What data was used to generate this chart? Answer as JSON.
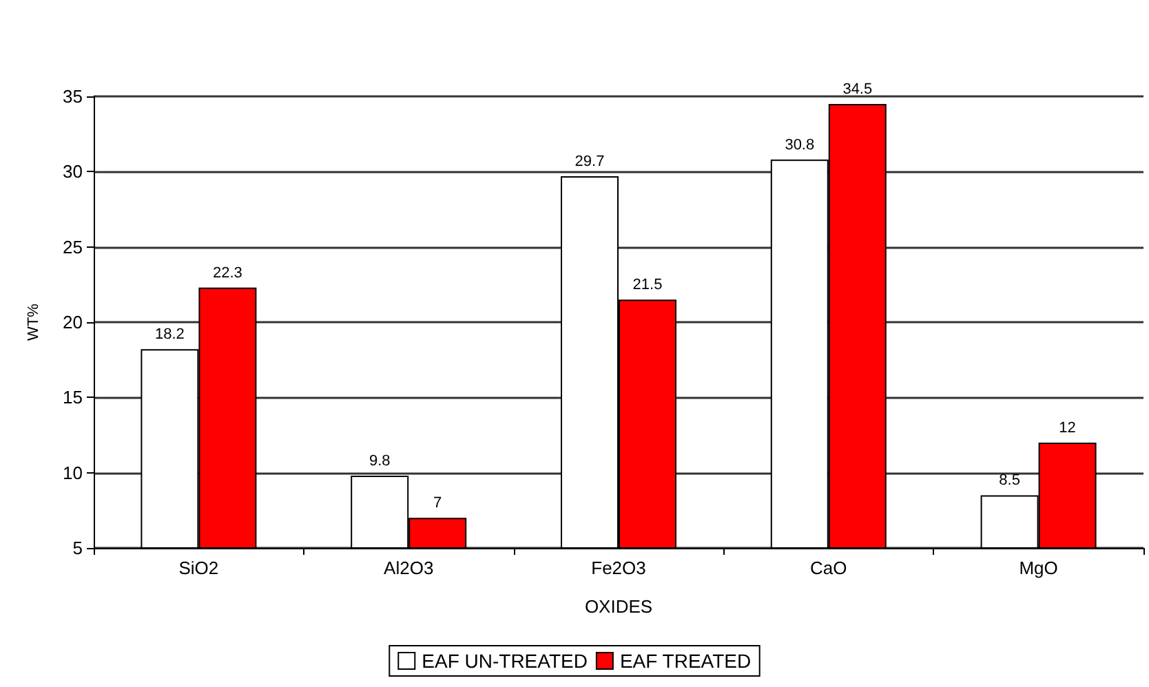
{
  "chart_data": {
    "type": "bar",
    "xlabel": "OXIDES",
    "ylabel": "WT%",
    "categories": [
      "SiO2",
      "Al2O3",
      "Fe2O3",
      "CaO",
      "MgO"
    ],
    "series": [
      {
        "name": "EAF UN-TREATED",
        "color": "#ffffff",
        "values": [
          18.2,
          9.8,
          29.7,
          30.8,
          8.5
        ]
      },
      {
        "name": "EAF TREATED",
        "color": "#ff0000",
        "values": [
          22.3,
          7,
          21.5,
          34.5,
          12
        ]
      }
    ],
    "ylim": [
      5,
      35
    ],
    "yticks": [
      5,
      10,
      15,
      20,
      25,
      30,
      35
    ],
    "grid": "y",
    "legend": "bottom",
    "data_labels": true
  }
}
